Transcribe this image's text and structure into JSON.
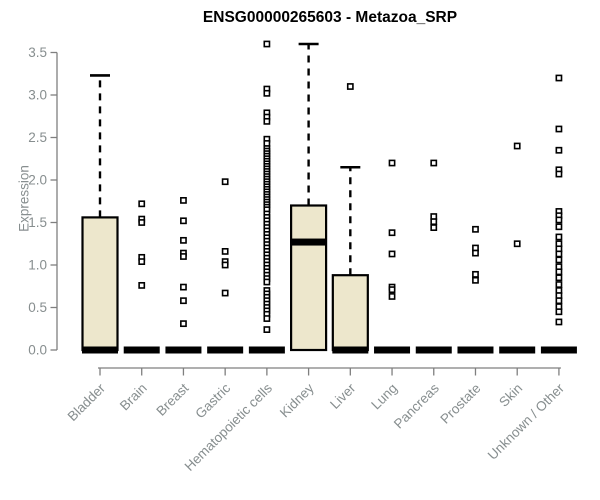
{
  "chart_data": {
    "type": "boxplot",
    "title": "ENSG00000265603 - Metazoa_SRP",
    "ylabel": "Expression",
    "xlabel": "",
    "ylim": [
      0,
      3.5
    ],
    "ytick_labels": [
      "0.0",
      "0.5",
      "1.0",
      "1.5",
      "2.0",
      "2.5",
      "3.0",
      "3.5"
    ],
    "grid": false,
    "legend": "none",
    "categories": [
      "Bladder",
      "Brain",
      "Breast",
      "Gastric",
      "Hematopoietic cells",
      "Kidney",
      "Liver",
      "Lung",
      "Pancreas",
      "Prostate",
      "Skin",
      "Unknown / Other"
    ],
    "series": [
      {
        "name": "Bladder",
        "q1": 0,
        "median": 0,
        "q3": 1.56,
        "whisker_low": 0,
        "whisker_high": 3.23,
        "outliers": []
      },
      {
        "name": "Brain",
        "q1": 0,
        "median": 0,
        "q3": 0,
        "whisker_low": 0,
        "whisker_high": 0,
        "outliers": [
          1.72,
          1.54,
          1.5,
          1.09,
          1.04,
          0.76
        ]
      },
      {
        "name": "Breast",
        "q1": 0,
        "median": 0,
        "q3": 0,
        "whisker_low": 0,
        "whisker_high": 0,
        "outliers": [
          1.76,
          1.52,
          1.29,
          1.14,
          1.1,
          0.74,
          0.58,
          0.31
        ]
      },
      {
        "name": "Gastric",
        "q1": 0,
        "median": 0,
        "q3": 0,
        "whisker_low": 0,
        "whisker_high": 0,
        "outliers": [
          1.98,
          1.16,
          1.04,
          1.0,
          0.67
        ]
      },
      {
        "name": "Hematopoietic cells",
        "q1": 0,
        "median": 0,
        "q3": 0,
        "whisker_low": 0,
        "whisker_high": 0,
        "outliers": [
          3.6,
          3.07,
          3.02,
          2.79,
          2.74,
          2.69,
          2.48,
          2.43,
          2.37,
          2.34,
          2.31,
          2.28,
          2.25,
          2.22,
          2.19,
          2.16,
          2.13,
          2.1,
          2.07,
          2.04,
          2.01,
          1.98,
          1.95,
          1.92,
          1.89,
          1.86,
          1.83,
          1.8,
          1.77,
          1.74,
          1.71,
          1.68,
          1.65,
          1.6,
          1.56,
          1.52,
          1.48,
          1.44,
          1.4,
          1.36,
          1.32,
          1.28,
          1.24,
          1.2,
          1.16,
          1.12,
          1.08,
          1.04,
          1.0,
          0.96,
          0.92,
          0.88,
          0.84,
          0.8,
          0.7,
          0.66,
          0.62,
          0.58,
          0.54,
          0.5,
          0.46,
          0.42,
          0.37,
          0.24
        ]
      },
      {
        "name": "Kidney",
        "q1": 0,
        "median": 1.27,
        "q3": 1.7,
        "whisker_low": 0,
        "whisker_high": 3.6,
        "outliers": []
      },
      {
        "name": "Liver",
        "q1": 0,
        "median": 0,
        "q3": 0.88,
        "whisker_low": 0,
        "whisker_high": 2.15,
        "outliers": [
          3.1
        ]
      },
      {
        "name": "Lung",
        "q1": 0,
        "median": 0,
        "q3": 0,
        "whisker_low": 0,
        "whisker_high": 0,
        "outliers": [
          2.2,
          1.38,
          1.13,
          0.74,
          0.71,
          0.63
        ]
      },
      {
        "name": "Pancreas",
        "q1": 0,
        "median": 0,
        "q3": 0,
        "whisker_low": 0,
        "whisker_high": 0,
        "outliers": [
          2.2,
          1.57,
          1.51,
          1.44
        ]
      },
      {
        "name": "Prostate",
        "q1": 0,
        "median": 0,
        "q3": 0,
        "whisker_low": 0,
        "whisker_high": 0,
        "outliers": [
          1.42,
          1.2,
          1.14,
          0.89,
          0.82
        ]
      },
      {
        "name": "Skin",
        "q1": 0,
        "median": 0,
        "q3": 0,
        "whisker_low": 0,
        "whisker_high": 0,
        "outliers": [
          2.4,
          1.25
        ]
      },
      {
        "name": "Unknown / Other",
        "q1": 0,
        "median": 0,
        "q3": 0,
        "whisker_low": 0,
        "whisker_high": 0,
        "outliers": [
          3.2,
          2.6,
          2.35,
          2.12,
          2.07,
          1.63,
          1.58,
          1.53,
          1.45,
          1.33,
          1.25,
          1.19,
          1.13,
          1.06,
          0.98,
          0.92,
          0.85,
          0.77,
          0.7,
          0.64,
          0.58,
          0.51,
          0.45,
          0.33
        ]
      }
    ],
    "colors": {
      "box_fill": "#EDE7CC",
      "box_stroke": "#000000",
      "median": "#000000",
      "whisker": "#000000",
      "outlier_stroke": "#000000",
      "outlier_fill": "#ffffff",
      "axis_line": "#7F7F7F",
      "tick_label": "#878E8F",
      "title": "#000000",
      "background": "#ffffff"
    }
  }
}
